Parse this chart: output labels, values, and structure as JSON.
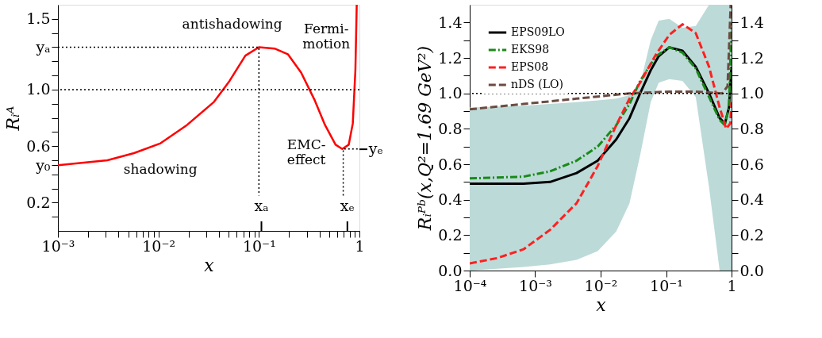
{
  "chart_data": [
    {
      "type": "line",
      "xlabel": "x",
      "ylabel": "Rᵢᴬ",
      "log": "x",
      "xlim": [
        0.001,
        1
      ],
      "ylim": [
        0,
        1.6
      ],
      "xticks": [
        {
          "value": 0.001,
          "label": "10⁻³"
        },
        {
          "value": 0.002,
          "label": null
        },
        {
          "value": 0.003,
          "label": null
        },
        {
          "value": 0.004,
          "label": null
        },
        {
          "value": 0.005,
          "label": null
        },
        {
          "value": 0.006,
          "label": null
        },
        {
          "value": 0.007,
          "label": null
        },
        {
          "value": 0.008,
          "label": null
        },
        {
          "value": 0.009,
          "label": null
        },
        {
          "value": 0.01,
          "label": "10⁻²"
        },
        {
          "value": 0.02,
          "label": null
        },
        {
          "value": 0.03,
          "label": null
        },
        {
          "value": 0.04,
          "label": null
        },
        {
          "value": 0.05,
          "label": null
        },
        {
          "value": 0.06,
          "label": null
        },
        {
          "value": 0.07,
          "label": null
        },
        {
          "value": 0.08,
          "label": null
        },
        {
          "value": 0.09,
          "label": null
        },
        {
          "value": 0.1,
          "label": "10⁻¹"
        },
        {
          "value": 0.2,
          "label": null
        },
        {
          "value": 0.3,
          "label": null
        },
        {
          "value": 0.4,
          "label": null
        },
        {
          "value": 0.5,
          "label": null
        },
        {
          "value": 0.6,
          "label": null
        },
        {
          "value": 0.7,
          "label": null
        },
        {
          "value": 0.8,
          "label": null
        },
        {
          "value": 0.9,
          "label": null
        },
        {
          "value": 1,
          "label": "1"
        }
      ],
      "yticks": [
        {
          "value": 0.1,
          "label": null
        },
        0.2,
        {
          "value": 0.3,
          "label": null
        },
        {
          "value": 0.4,
          "label": null
        },
        {
          "value": 0.465,
          "label": "y₀"
        },
        {
          "value": 0.5,
          "label": null
        },
        0.6,
        {
          "value": 0.7,
          "label": null
        },
        {
          "value": 0.8,
          "label": null
        },
        {
          "value": 0.9,
          "label": null
        },
        {
          "value": 1,
          "label": "1.0"
        },
        {
          "value": 1.1,
          "label": null
        },
        {
          "value": 1.2,
          "label": null
        },
        {
          "value": 1.3,
          "label": "yₐ"
        },
        {
          "value": 1.4,
          "label": null
        },
        1.5
      ],
      "series": [
        {
          "color": "#ff0000",
          "line_style": "solid",
          "x": [
            0.001,
            0.00311,
            0.00571,
            0.0105,
            0.0193,
            0.0354,
            0.0509,
            0.0733,
            0.1,
            0.143,
            0.194,
            0.263,
            0.356,
            0.454,
            0.579,
            0.675,
            0.783,
            0.859,
            0.912,
            0.94
          ],
          "values": [
            0.465,
            0.5,
            0.55,
            0.62,
            0.75,
            0.91,
            1.06,
            1.24,
            1.3,
            1.29,
            1.25,
            1.12,
            0.93,
            0.75,
            0.61,
            0.58,
            0.61,
            0.76,
            1.14,
            1.6
          ]
        },
        {
          "color": "#000000",
          "line_style": "dotted",
          "x": [
            0.001,
            0.1,
            0.1
          ],
          "values": [
            1.3,
            1.3,
            0.25
          ]
        },
        {
          "color": "#000000",
          "line_style": "dotted",
          "x": [
            0.69,
            0.69,
            1
          ],
          "values": [
            0.25,
            0.58,
            0.58
          ]
        }
      ],
      "ref_lines": [
        {
          "axis": "y",
          "value": 1,
          "line_style": "dotted",
          "color": "#000000"
        }
      ],
      "annotations": [
        "antishadowing",
        "Fermi-\nmotion",
        "shadowing",
        "EMC-\neffect",
        "xₐ",
        "xₑ",
        "yₑ"
      ]
    },
    {
      "type": "line",
      "xlabel": "x",
      "ylabel": "Rᵢᴾᵇ(x,Q²=1.69 GeV²)",
      "log": "x",
      "xlim": [
        0.0001,
        1
      ],
      "ylim": [
        0,
        1.5
      ],
      "xticks": [
        {
          "value": 0.0001,
          "label": "10⁻⁴"
        },
        {
          "value": 0.001,
          "label": "10⁻³"
        },
        {
          "value": 0.01,
          "label": "10⁻²"
        },
        {
          "value": 0.1,
          "label": "10⁻¹"
        },
        {
          "value": 1,
          "label": "1"
        }
      ],
      "yticks": [
        {
          "value": 0,
          "label": "0.0"
        },
        {
          "value": 0.1,
          "label": null
        },
        0.2,
        {
          "value": 0.3,
          "label": null
        },
        0.4,
        {
          "value": 0.5,
          "label": null
        },
        0.6,
        {
          "value": 0.7,
          "label": null
        },
        0.8,
        {
          "value": 0.9,
          "label": null
        },
        {
          "value": 1,
          "label": "1.0"
        },
        {
          "value": 1.1,
          "label": null
        },
        1.2,
        {
          "value": 1.3,
          "label": null
        },
        1.4
      ],
      "y2lim": [
        0,
        1.5
      ],
      "y2ticks": [
        {
          "value": 0,
          "label": "0.0"
        },
        {
          "value": 0.1,
          "label": null
        },
        0.2,
        {
          "value": 0.3,
          "label": null
        },
        0.4,
        {
          "value": 0.5,
          "label": null
        },
        0.6,
        {
          "value": 0.7,
          "label": null
        },
        0.8,
        {
          "value": 0.9,
          "label": null
        },
        {
          "value": 1,
          "label": "1.0"
        },
        {
          "value": 1.1,
          "label": null
        },
        1.2,
        {
          "value": 1.3,
          "label": null
        },
        1.4
      ],
      "legend": "top left",
      "series": [
        {
          "name": "EPS09LO",
          "color": "#000000",
          "line_style": "solid",
          "x": [
            0.0001,
            0.000664,
            0.00169,
            0.00429,
            0.00902,
            0.0173,
            0.0276,
            0.0401,
            0.0582,
            0.0771,
            0.112,
            0.178,
            0.284,
            0.453,
            0.658,
            0.793,
            0.912,
            1
          ],
          "values": [
            0.49,
            0.49,
            0.5,
            0.55,
            0.62,
            0.74,
            0.86,
            1.0,
            1.13,
            1.21,
            1.26,
            1.24,
            1.15,
            1.0,
            0.86,
            0.83,
            0.92,
            1.15
          ],
          "lower": [
            0.0,
            0.02,
            0.035,
            0.06,
            0.11,
            0.22,
            0.38,
            0.65,
            0.95,
            1.06,
            1.08,
            1.07,
            0.98,
            0.47,
            0.0,
            0.0,
            0.0,
            0.0
          ],
          "upper": [
            0.92,
            0.93,
            0.94,
            0.95,
            0.96,
            0.97,
            0.99,
            1.05,
            1.3,
            1.41,
            1.42,
            1.37,
            1.38,
            1.5,
            1.5,
            1.5,
            1.5,
            1.5
          ]
        },
        {
          "name": "EKS98",
          "color": "#1a8a1a",
          "line_style": "dashdot",
          "x": [
            0.0001,
            0.000664,
            0.00169,
            0.00429,
            0.00902,
            0.0173,
            0.0276,
            0.0401,
            0.0702,
            0.112,
            0.178,
            0.284,
            0.453,
            0.658,
            0.793,
            0.912,
            1
          ],
          "values": [
            0.52,
            0.53,
            0.56,
            0.62,
            0.7,
            0.82,
            0.94,
            1.07,
            1.21,
            1.26,
            1.23,
            1.14,
            0.98,
            0.85,
            0.82,
            0.92,
            1.4
          ]
        },
        {
          "name": "EPS08",
          "color": "#ff2020",
          "line_style": "dashed",
          "x": [
            0.0001,
            0.000261,
            0.000664,
            0.00169,
            0.00429,
            0.00902,
            0.0173,
            0.0276,
            0.0401,
            0.0702,
            0.112,
            0.178,
            0.284,
            0.453,
            0.658,
            0.83,
            0.955,
            1
          ],
          "values": [
            0.04,
            0.07,
            0.12,
            0.23,
            0.38,
            0.59,
            0.82,
            0.97,
            1.06,
            1.22,
            1.33,
            1.39,
            1.34,
            1.15,
            0.92,
            0.8,
            0.83,
            0.95
          ]
        },
        {
          "name": "nDS (LO)",
          "color": "#6b4c42",
          "line_style": "dashed",
          "x": [
            0.0001,
            0.000664,
            0.00429,
            0.0276,
            0.112,
            0.284,
            0.721,
            0.869,
            0.97
          ],
          "values": [
            0.91,
            0.94,
            0.97,
            1.0,
            1.01,
            1.01,
            1.0,
            1.04,
            1.5
          ]
        }
      ],
      "ref_lines": [
        {
          "axis": "y",
          "value": 1,
          "line_style": "dotted",
          "color": "#000000"
        }
      ]
    }
  ]
}
